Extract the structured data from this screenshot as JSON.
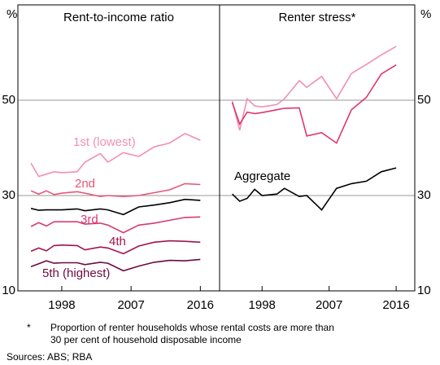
{
  "chart_data": [
    {
      "type": "line",
      "title": "Rent-to-income ratio",
      "unit": "%",
      "x": [
        1994,
        1995,
        1996,
        1997,
        1998,
        2000,
        2001,
        2003,
        2004,
        2006,
        2008,
        2010,
        2012,
        2014,
        2016
      ],
      "xlim": [
        1992.3,
        2018.5
      ],
      "xticks": [
        1998,
        2007,
        2016
      ],
      "ylim": [
        10,
        70
      ],
      "yticks": [
        10,
        30,
        50
      ],
      "grid": true,
      "series": [
        {
          "name": "1st (lowest)",
          "color": "#f290b0",
          "values": [
            36.8,
            34.0,
            34.5,
            35.0,
            34.8,
            35.0,
            37.0,
            38.8,
            37.0,
            39.0,
            38.2,
            40.2,
            41.0,
            43.0,
            41.6
          ]
        },
        {
          "name": "2nd",
          "color": "#e8557a",
          "values": [
            31.0,
            30.3,
            31.0,
            30.2,
            30.5,
            30.8,
            30.5,
            29.8,
            30.0,
            29.8,
            30.0,
            30.6,
            31.2,
            32.5,
            32.3
          ]
        },
        {
          "color": "#000000",
          "values": [
            27.3,
            26.9,
            27.0,
            27.0,
            27.0,
            27.2,
            26.8,
            27.2,
            27.0,
            26.0,
            27.6,
            28.0,
            28.5,
            29.2,
            29.0
          ]
        },
        {
          "name": "3rd",
          "color": "#d93a6e",
          "values": [
            23.5,
            24.3,
            23.6,
            24.5,
            24.5,
            24.5,
            24.0,
            24.2,
            23.8,
            22.2,
            23.8,
            24.2,
            24.8,
            25.4,
            25.5
          ]
        },
        {
          "name": "4th",
          "color": "#a3144f",
          "values": [
            18.3,
            19.0,
            18.4,
            19.5,
            19.6,
            19.5,
            18.6,
            19.2,
            19.0,
            17.8,
            19.4,
            20.2,
            20.5,
            20.4,
            20.2
          ]
        },
        {
          "name": "5th (highest)",
          "color": "#6e0a42",
          "values": [
            15.1,
            15.7,
            16.3,
            15.8,
            15.9,
            15.9,
            15.5,
            16.0,
            15.8,
            14.2,
            15.2,
            16.0,
            16.4,
            16.3,
            16.6
          ]
        }
      ]
    },
    {
      "type": "line",
      "title": "Renter stress*",
      "unit": "%",
      "x": [
        1994,
        1995,
        1996,
        1997,
        1998,
        2000,
        2001,
        2003,
        2004,
        2006,
        2008,
        2010,
        2012,
        2014,
        2016
      ],
      "xlim": [
        1992.3,
        2018.5
      ],
      "xticks": [
        1998,
        2007,
        2016
      ],
      "ylim": [
        10,
        70
      ],
      "yticks": [
        10,
        30,
        50
      ],
      "grid": true,
      "series": [
        {
          "color": "#f290b0",
          "values": [
            49.8,
            43.7,
            50.3,
            48.8,
            48.6,
            49.1,
            50.3,
            54.1,
            52.7,
            55.0,
            50.3,
            55.6,
            57.5,
            59.5,
            61.3
          ]
        },
        {
          "color": "#e0356a",
          "values": [
            49.5,
            45.0,
            47.5,
            47.2,
            47.4,
            48.0,
            48.3,
            48.4,
            42.5,
            43.2,
            41.0,
            48.0,
            50.6,
            55.5,
            57.4
          ]
        },
        {
          "name": "Aggregate",
          "color": "#000000",
          "values": [
            30.3,
            28.8,
            29.4,
            31.3,
            30.0,
            30.3,
            31.5,
            29.8,
            30.0,
            27.0,
            31.5,
            32.5,
            33.0,
            35.0,
            35.8
          ]
        }
      ]
    }
  ],
  "notes": {
    "marker": "*",
    "text_lines": [
      "Proportion of renter households whose rental costs are more than",
      "30 per cent of household disposable income"
    ],
    "sources": "Sources: ABS; RBA"
  }
}
